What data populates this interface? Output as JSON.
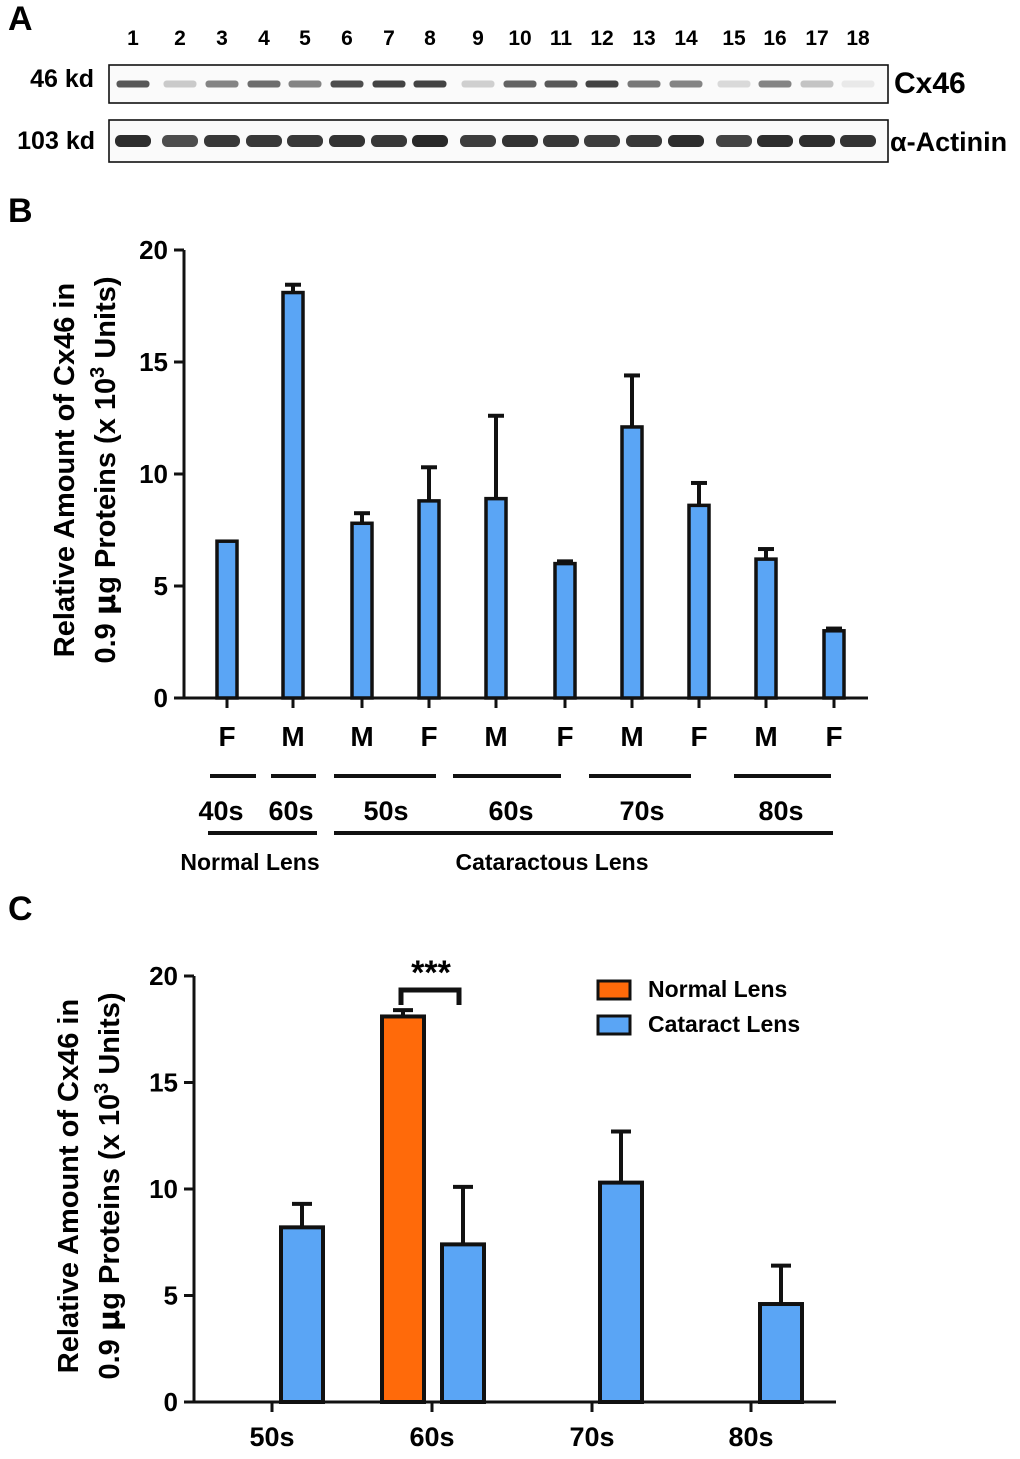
{
  "colors": {
    "cataract": "#5aa5f5",
    "normal": "#ff6a0a",
    "axis": "#111111",
    "band": "#222222"
  },
  "panel_a": {
    "label": "A",
    "lane_numbers": [
      "1",
      "2",
      "3",
      "4",
      "5",
      "6",
      "7",
      "8",
      "9",
      "10",
      "11",
      "12",
      "13",
      "14",
      "15",
      "16",
      "17",
      "18"
    ],
    "cx46": {
      "mw": "46 kd",
      "name": "Cx46",
      "intensities": [
        0.75,
        0.22,
        0.55,
        0.65,
        0.55,
        0.8,
        0.85,
        0.85,
        0.2,
        0.7,
        0.75,
        0.85,
        0.6,
        0.55,
        0.15,
        0.55,
        0.25,
        0.08
      ]
    },
    "actinin": {
      "mw": "103 kd",
      "name": "α-Actinin",
      "intensities": [
        0.95,
        0.8,
        0.9,
        0.9,
        0.9,
        0.92,
        0.9,
        0.97,
        0.88,
        0.92,
        0.9,
        0.88,
        0.9,
        0.95,
        0.85,
        0.95,
        0.95,
        0.92
      ]
    }
  },
  "chart_data": [
    {
      "panel": "B",
      "type": "bar",
      "ylabel_line1": "Relative Amount of Cx46 in",
      "ylabel_line2_parts": [
        "0.9 ",
        "μ",
        "g Proteins (x 10",
        "3",
        " Units)"
      ],
      "ylim": [
        0,
        20
      ],
      "yticks": [
        "0",
        "5",
        "10",
        "15",
        "20"
      ],
      "categories": [
        "F",
        "M",
        "M",
        "F",
        "M",
        "F",
        "M",
        "F",
        "M",
        "F"
      ],
      "values": [
        7.0,
        18.1,
        7.8,
        8.8,
        8.9,
        6.0,
        12.1,
        8.6,
        6.2,
        3.0
      ],
      "errors": [
        0.0,
        0.35,
        0.45,
        1.5,
        3.7,
        0.1,
        2.3,
        1.0,
        0.45,
        0.1
      ],
      "age_groups": [
        "40s",
        "60s",
        "50s",
        "60s",
        "70s",
        "80s"
      ],
      "lens_groups": [
        "Normal Lens",
        "Cataractous Lens"
      ]
    },
    {
      "panel": "C",
      "type": "bar",
      "ylabel_line1": "Relative Amount of Cx46 in",
      "ylabel_line2_parts": [
        "0.9 ",
        "μ",
        "g Proteins (x 10",
        "3",
        " Units)"
      ],
      "ylim": [
        0,
        20
      ],
      "yticks": [
        "0",
        "5",
        "10",
        "15",
        "20"
      ],
      "categories": [
        "50s",
        "60s",
        "70s",
        "80s"
      ],
      "series": [
        {
          "name": "Normal Lens",
          "values": [
            null,
            18.1,
            null,
            null
          ],
          "errors": [
            null,
            0.3,
            null,
            null
          ]
        },
        {
          "name": "Cataract Lens",
          "values": [
            8.2,
            7.4,
            10.3,
            4.6
          ],
          "errors": [
            1.1,
            2.7,
            2.4,
            1.8
          ]
        }
      ],
      "significance": "***",
      "legend_position": "top-right"
    }
  ]
}
